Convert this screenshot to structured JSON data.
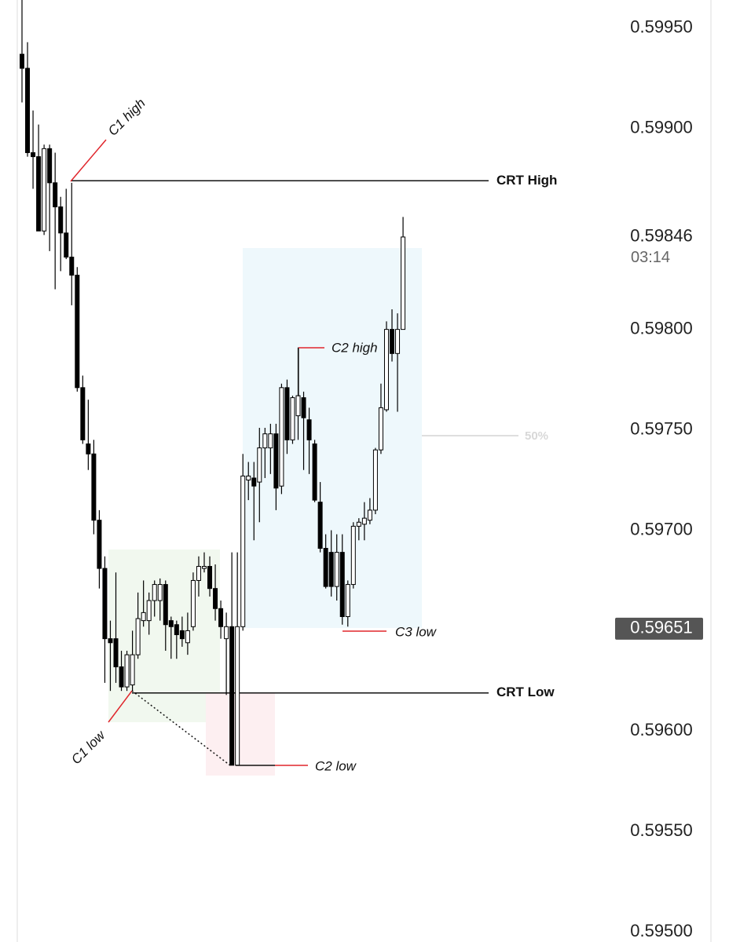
{
  "chart_data": {
    "type": "candlestick",
    "ylim": [
      0.59495,
      0.59964
    ],
    "yticks": [
      {
        "value": 0.5995,
        "label": "0.59950"
      },
      {
        "value": 0.599,
        "label": "0.59900"
      },
      {
        "value": 0.598,
        "label": "0.59800"
      },
      {
        "value": 0.5975,
        "label": "0.59750"
      },
      {
        "value": 0.597,
        "label": "0.59700"
      },
      {
        "value": 0.596,
        "label": "0.59600"
      },
      {
        "value": 0.5955,
        "label": "0.59550"
      },
      {
        "value": 0.595,
        "label": "0.59500"
      }
    ],
    "up_color": "#ffffff",
    "down_color": "#000000",
    "open": [
      0.59937,
      0.5993,
      0.59888,
      0.59886,
      0.59849,
      0.5989,
      0.59873,
      0.59861,
      0.59848,
      0.59836,
      0.59827,
      0.59771,
      0.59743,
      0.59738,
      0.59705,
      0.59681,
      0.59646,
      0.59646,
      0.59632,
      0.59622,
      0.59623,
      0.59638,
      0.59655,
      0.59655,
      0.59665,
      0.59665,
      0.59673,
      0.59655,
      0.59653,
      0.5965,
      0.59644,
      0.59652,
      0.59675,
      0.59681,
      0.59682,
      0.59671,
      0.59661,
      0.59646,
      0.59652,
      0.59583,
      0.59652,
      0.59725,
      0.59726,
      0.59724,
      0.59741,
      0.59741,
      0.59748,
      0.59722,
      0.59771,
      0.59745,
      0.59757,
      0.59766,
      0.59755,
      0.59743,
      0.59714,
      0.59691,
      0.59689,
      0.59672,
      0.59689,
      0.59657,
      0.59673,
      0.59702,
      0.59703,
      0.59705,
      0.5971,
      0.5974,
      0.5976,
      0.598,
      0.59788,
      0.598
    ],
    "high": [
      0.59964,
      0.59943,
      0.59909,
      0.59902,
      0.59892,
      0.59892,
      0.59888,
      0.59866,
      0.5987,
      0.59873,
      0.59831,
      0.59777,
      0.59765,
      0.59745,
      0.5971,
      0.59687,
      0.59655,
      0.59679,
      0.5964,
      0.5964,
      0.5965,
      0.59669,
      0.59675,
      0.59669,
      0.59675,
      0.59676,
      0.59675,
      0.59657,
      0.59655,
      0.59657,
      0.59659,
      0.59679,
      0.59687,
      0.59689,
      0.59687,
      0.59683,
      0.59665,
      0.59659,
      0.59689,
      0.59689,
      0.59738,
      0.59734,
      0.59734,
      0.59751,
      0.59751,
      0.59753,
      0.59753,
      0.59773,
      0.59775,
      0.59767,
      0.59791,
      0.59769,
      0.59761,
      0.59745,
      0.59724,
      0.59698,
      0.597,
      0.59698,
      0.59698,
      0.59675,
      0.59704,
      0.59706,
      0.59714,
      0.59716,
      0.59741,
      0.59773,
      0.59804,
      0.5981,
      0.59808,
      0.59856
    ],
    "low": [
      0.59913,
      0.59886,
      0.5987,
      0.59849,
      0.59847,
      0.59839,
      0.5982,
      0.59829,
      0.59835,
      0.59812,
      0.59769,
      0.59743,
      0.5973,
      0.59698,
      0.59671,
      0.59624,
      0.5962,
      0.59624,
      0.5962,
      0.5962,
      0.5962,
      0.59636,
      0.59652,
      0.59648,
      0.59657,
      0.59655,
      0.5964,
      0.59636,
      0.59636,
      0.59642,
      0.59638,
      0.5965,
      0.59667,
      0.59679,
      0.59667,
      0.59655,
      0.59646,
      0.59618,
      0.59583,
      0.59583,
      0.5965,
      0.59715,
      0.59695,
      0.59704,
      0.59726,
      0.59728,
      0.5971,
      0.59718,
      0.59738,
      0.59743,
      0.59745,
      0.5973,
      0.59728,
      0.59714,
      0.59689,
      0.59671,
      0.59667,
      0.59665,
      0.59653,
      0.59652,
      0.59671,
      0.59695,
      0.59695,
      0.59703,
      0.59708,
      0.59738,
      0.59759,
      0.59784,
      0.59759,
      0.598
    ],
    "close": [
      0.5993,
      0.59888,
      0.59886,
      0.59849,
      0.5989,
      0.59873,
      0.59861,
      0.59848,
      0.59836,
      0.59827,
      0.59771,
      0.59745,
      0.59738,
      0.59705,
      0.59681,
      0.59646,
      0.59644,
      0.59632,
      0.59622,
      0.59638,
      0.59638,
      0.59656,
      0.59659,
      0.59665,
      0.59673,
      0.59673,
      0.59653,
      0.59652,
      0.59648,
      0.59646,
      0.5965,
      0.59675,
      0.59682,
      0.59682,
      0.59671,
      0.59661,
      0.59652,
      0.59652,
      0.59583,
      0.59652,
      0.59727,
      0.59727,
      0.59722,
      0.59741,
      0.59748,
      0.59748,
      0.59721,
      0.59771,
      0.59745,
      0.59766,
      0.59767,
      0.59756,
      0.59745,
      0.59715,
      0.59691,
      0.59672,
      0.59672,
      0.59689,
      0.59657,
      0.59673,
      0.59702,
      0.59704,
      0.59706,
      0.5971,
      0.5974,
      0.59761,
      0.598,
      0.59788,
      0.598,
      0.59846
    ],
    "levels": [
      {
        "label": "CRT High",
        "value": 0.59874
      },
      {
        "label": "CRT Low",
        "value": 0.59619
      }
    ],
    "last_price": 0.59846,
    "countdown": "03:14",
    "marked_price": 0.59651,
    "annotations": {
      "c1_high": "C1 high",
      "c1_low": "C1 low",
      "c2_high": "C2 high",
      "c2_low": "C2 low",
      "c3_low": "C3 low",
      "fifty": "50%"
    }
  }
}
